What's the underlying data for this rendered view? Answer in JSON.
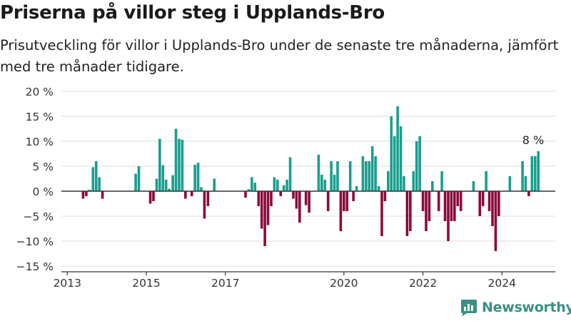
{
  "title": "Priserna på villor steg i Upplands-Bro",
  "subtitle": "Prisutveckling för villor i Upplands-Bro under de senaste tre månaderna, jämfört med tre månader tidigare.",
  "brand": {
    "name": "Newsworthy",
    "color": "#3a8f86"
  },
  "chart_data": {
    "type": "bar",
    "title": "Priserna på villor steg i Upplands-Bro",
    "subtitle": "Prisutveckling för villor i Upplands-Bro under de senaste tre månaderna, jämfört med tre månader tidigare.",
    "xlabel": "",
    "ylabel": "",
    "ylim": [
      -15,
      20
    ],
    "xlim": [
      2012.85,
      2025.35
    ],
    "grid": true,
    "legend": "none",
    "yticks": [
      {
        "value": 20,
        "label": "20 %"
      },
      {
        "value": 15,
        "label": "15 %"
      },
      {
        "value": 10,
        "label": "10 %"
      },
      {
        "value": 5,
        "label": "5 %"
      },
      {
        "value": 0,
        "label": "0 %"
      },
      {
        "value": -5,
        "label": "−5 %"
      },
      {
        "value": -10,
        "label": "−10 %"
      },
      {
        "value": -15,
        "label": "−15 %"
      }
    ],
    "xticks": [
      {
        "value": 2013,
        "label": "2013"
      },
      {
        "value": 2015,
        "label": "2015"
      },
      {
        "value": 2017,
        "label": "2017"
      },
      {
        "value": 2020,
        "label": "2020"
      },
      {
        "value": 2022,
        "label": "2022"
      },
      {
        "value": 2024,
        "label": "2024"
      }
    ],
    "colors": {
      "positive": "#1a9e8f",
      "negative": "#8c0a3c",
      "axis": "#333333",
      "grid": "#dddddd"
    },
    "annotation": {
      "label": "8 %",
      "x": 2024.79,
      "y": 8.0
    },
    "points": [
      [
        2013.4,
        -1.5
      ],
      [
        2013.48,
        -1.0
      ],
      [
        2013.56,
        0.3
      ],
      [
        2013.65,
        4.8
      ],
      [
        2013.73,
        6.0
      ],
      [
        2013.81,
        2.8
      ],
      [
        2013.89,
        -1.5
      ],
      [
        2014.73,
        3.5
      ],
      [
        2014.81,
        5.0
      ],
      [
        2015.1,
        -2.5
      ],
      [
        2015.18,
        -2.0
      ],
      [
        2015.26,
        2.5
      ],
      [
        2015.34,
        10.5
      ],
      [
        2015.42,
        5.2
      ],
      [
        2015.5,
        2.3
      ],
      [
        2015.58,
        0.5
      ],
      [
        2015.67,
        3.2
      ],
      [
        2015.75,
        12.5
      ],
      [
        2015.83,
        10.5
      ],
      [
        2015.91,
        10.3
      ],
      [
        2015.99,
        -1.5
      ],
      [
        2016.15,
        -1.0
      ],
      [
        2016.23,
        5.3
      ],
      [
        2016.31,
        5.7
      ],
      [
        2016.39,
        0.8
      ],
      [
        2016.47,
        -5.5
      ],
      [
        2016.56,
        -3.0
      ],
      [
        2016.72,
        2.5
      ],
      [
        2017.51,
        -1.3
      ],
      [
        2017.59,
        0.4
      ],
      [
        2017.67,
        2.8
      ],
      [
        2017.75,
        1.7
      ],
      [
        2017.84,
        -3.0
      ],
      [
        2017.92,
        -7.5
      ],
      [
        2018.0,
        -11.0
      ],
      [
        2018.08,
        -6.8
      ],
      [
        2018.16,
        -3.0
      ],
      [
        2018.24,
        2.8
      ],
      [
        2018.32,
        2.3
      ],
      [
        2018.4,
        -1.0
      ],
      [
        2018.48,
        1.2
      ],
      [
        2018.56,
        2.3
      ],
      [
        2018.64,
        6.8
      ],
      [
        2018.72,
        -1.5
      ],
      [
        2018.8,
        -3.5
      ],
      [
        2018.88,
        -6.3
      ],
      [
        2019.04,
        -2.8
      ],
      [
        2019.12,
        -4.3
      ],
      [
        2019.36,
        7.3
      ],
      [
        2019.44,
        3.3
      ],
      [
        2019.52,
        2.3
      ],
      [
        2019.6,
        -4.0
      ],
      [
        2019.68,
        6.0
      ],
      [
        2019.76,
        3.3
      ],
      [
        2019.84,
        6.0
      ],
      [
        2019.92,
        -8.0
      ],
      [
        2020.0,
        -4.0
      ],
      [
        2020.08,
        -4.0
      ],
      [
        2020.16,
        6.0
      ],
      [
        2020.24,
        -2.0
      ],
      [
        2020.32,
        1.0
      ],
      [
        2020.48,
        7.0
      ],
      [
        2020.56,
        6.0
      ],
      [
        2020.64,
        6.0
      ],
      [
        2020.72,
        9.0
      ],
      [
        2020.8,
        7.0
      ],
      [
        2020.88,
        1.0
      ],
      [
        2020.96,
        -9.0
      ],
      [
        2021.04,
        -2.0
      ],
      [
        2021.12,
        4.0
      ],
      [
        2021.2,
        15.0
      ],
      [
        2021.28,
        11.0
      ],
      [
        2021.36,
        17.0
      ],
      [
        2021.44,
        13.0
      ],
      [
        2021.52,
        3.0
      ],
      [
        2021.6,
        -9.0
      ],
      [
        2021.68,
        -8.0
      ],
      [
        2021.76,
        4.0
      ],
      [
        2021.84,
        10.0
      ],
      [
        2021.92,
        11.0
      ],
      [
        2022.0,
        -4.0
      ],
      [
        2022.08,
        -8.0
      ],
      [
        2022.16,
        -6.0
      ],
      [
        2022.24,
        2.0
      ],
      [
        2022.32,
        0.0
      ],
      [
        2022.4,
        -4.0
      ],
      [
        2022.48,
        4.0
      ],
      [
        2022.56,
        -6.0
      ],
      [
        2022.64,
        -10.0
      ],
      [
        2022.72,
        -6.0
      ],
      [
        2022.8,
        -6.0
      ],
      [
        2022.88,
        -3.0
      ],
      [
        2022.96,
        -4.0
      ],
      [
        2023.28,
        2.0
      ],
      [
        2023.44,
        -5.0
      ],
      [
        2023.52,
        -3.0
      ],
      [
        2023.6,
        4.0
      ],
      [
        2023.68,
        -4.0
      ],
      [
        2023.76,
        -7.0
      ],
      [
        2023.84,
        -12.0
      ],
      [
        2023.92,
        -5.0
      ],
      [
        2024.2,
        3.0
      ],
      [
        2024.52,
        6.0
      ],
      [
        2024.6,
        3.0
      ],
      [
        2024.68,
        -1.0
      ],
      [
        2024.76,
        7.0
      ],
      [
        2024.84,
        7.0
      ],
      [
        2024.92,
        8.0
      ]
    ]
  }
}
